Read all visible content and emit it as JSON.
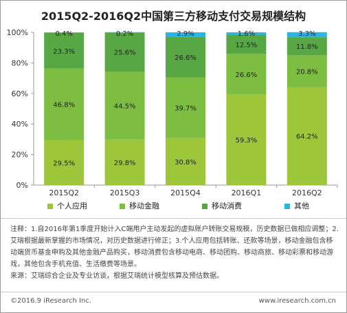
{
  "title": "2015Q2-2016Q2中国第三方移动支付交易规模结构",
  "chart_data": {
    "type": "bar",
    "stacked": true,
    "categories": [
      "2015Q2",
      "2015Q3",
      "2015Q4",
      "2016Q1",
      "2016Q2"
    ],
    "series": [
      {
        "name": "个人应用",
        "color": "#9dc63b",
        "values": [
          29.5,
          29.8,
          30.8,
          59.3,
          64.2
        ],
        "labels": [
          "29.5%",
          "29.8%",
          "30.8%",
          "59.3%",
          "64.2%"
        ]
      },
      {
        "name": "移动金融",
        "color": "#7cbd42",
        "values": [
          46.8,
          44.5,
          39.7,
          26.6,
          20.8
        ],
        "labels": [
          "46.8%",
          "44.5%",
          "39.7%",
          "26.6%",
          "20.8%"
        ]
      },
      {
        "name": "移动消费",
        "color": "#57a845",
        "values": [
          23.3,
          25.6,
          26.6,
          12.5,
          11.8
        ],
        "labels": [
          "23.3%",
          "25.6%",
          "26.6%",
          "12.5%",
          "11.8%"
        ]
      },
      {
        "name": "其他",
        "color": "#29b6e6",
        "values": [
          0.4,
          0.2,
          2.9,
          1.6,
          3.3
        ],
        "labels": [
          "0.4%",
          "0.2%",
          "2.9%",
          "1.6%",
          "3.3%"
        ]
      }
    ],
    "yticks": [
      "0%",
      "20%",
      "40%",
      "60%",
      "80%",
      "100%"
    ],
    "ylim": [
      0,
      100
    ],
    "legend_position": "bottom",
    "grid": false
  },
  "notes": [
    "注释：1.自2016年第1季度开始计入C端用户主动发起的虚拟账户转账交易规模，历史数据已做相应调整；2. 艾瑞根据最新掌握的市场情况，对历史数据进行修正；3.个人应用包括转账、还款等场景，移动金融包含移动端货币基金申购及其他金融产品购买，移动消费包含移动电商、移动团购、移动商旅、移动彩票和移动游戏，其他包含手机充值、生活缴费等场景。",
    "来源：艾瑞综合企业及专业访谈，根据艾瑞统计模型核算及预估数据。"
  ],
  "footer": {
    "left": "©2016.9 iResearch Inc.",
    "right": "www.iresearch.com.cn"
  }
}
